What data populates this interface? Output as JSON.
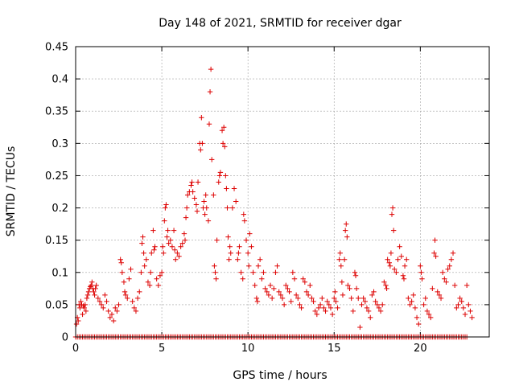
{
  "chart_data": {
    "type": "scatter",
    "title": "Day 148 of 2021, SRMTID for receiver dgar",
    "xlabel": "GPS time / hours",
    "ylabel": "SRMTID / TECUs",
    "xlim": [
      0,
      24
    ],
    "ylim": [
      0,
      0.45
    ],
    "x_ticks": [
      0,
      5,
      10,
      15,
      20
    ],
    "x_tick_labels": [
      "0",
      "5",
      "10",
      "15",
      "20"
    ],
    "y_ticks": [
      0,
      0.05,
      0.1,
      0.15,
      0.2,
      0.25,
      0.3,
      0.35,
      0.4,
      0.45
    ],
    "y_tick_labels": [
      "0",
      "0.05",
      "0.1",
      "0.15",
      "0.2",
      "0.25",
      "0.3",
      "0.35",
      "0.4",
      "0.45"
    ],
    "grid": true,
    "marker": "+",
    "color": "#dd0000",
    "series": [
      {
        "name": "SRMTID",
        "points": [
          [
            0.05,
            0.02
          ],
          [
            0.1,
            0.03
          ],
          [
            0.15,
            0.025
          ],
          [
            0.2,
            0.05
          ],
          [
            0.25,
            0.045
          ],
          [
            0.3,
            0.055
          ],
          [
            0.35,
            0.05
          ],
          [
            0.4,
            0.035
          ],
          [
            0.45,
            0.048
          ],
          [
            0.5,
            0.045
          ],
          [
            0.55,
            0.05
          ],
          [
            0.6,
            0.04
          ],
          [
            0.65,
            0.06
          ],
          [
            0.7,
            0.065
          ],
          [
            0.75,
            0.07
          ],
          [
            0.8,
            0.075
          ],
          [
            0.85,
            0.078
          ],
          [
            0.9,
            0.08
          ],
          [
            0.95,
            0.085
          ],
          [
            1.0,
            0.075
          ],
          [
            1.05,
            0.07
          ],
          [
            1.1,
            0.065
          ],
          [
            1.15,
            0.075
          ],
          [
            1.2,
            0.08
          ],
          [
            1.3,
            0.06
          ],
          [
            1.4,
            0.055
          ],
          [
            1.5,
            0.05
          ],
          [
            1.6,
            0.045
          ],
          [
            1.7,
            0.065
          ],
          [
            1.8,
            0.055
          ],
          [
            1.9,
            0.04
          ],
          [
            2.0,
            0.03
          ],
          [
            2.1,
            0.035
          ],
          [
            2.2,
            0.025
          ],
          [
            2.3,
            0.045
          ],
          [
            2.4,
            0.04
          ],
          [
            2.5,
            0.05
          ],
          [
            2.6,
            0.12
          ],
          [
            2.65,
            0.115
          ],
          [
            2.7,
            0.1
          ],
          [
            2.8,
            0.085
          ],
          [
            2.85,
            0.07
          ],
          [
            2.9,
            0.065
          ],
          [
            3.0,
            0.06
          ],
          [
            3.1,
            0.09
          ],
          [
            3.2,
            0.105
          ],
          [
            3.3,
            0.055
          ],
          [
            3.4,
            0.045
          ],
          [
            3.5,
            0.04
          ],
          [
            3.6,
            0.06
          ],
          [
            3.7,
            0.07
          ],
          [
            3.8,
            0.1
          ],
          [
            3.85,
            0.145
          ],
          [
            3.9,
            0.155
          ],
          [
            3.95,
            0.13
          ],
          [
            4.0,
            0.11
          ],
          [
            4.1,
            0.12
          ],
          [
            4.2,
            0.085
          ],
          [
            4.3,
            0.08
          ],
          [
            4.35,
            0.1
          ],
          [
            4.4,
            0.13
          ],
          [
            4.5,
            0.165
          ],
          [
            4.55,
            0.135
          ],
          [
            4.6,
            0.14
          ],
          [
            4.7,
            0.09
          ],
          [
            4.8,
            0.08
          ],
          [
            4.9,
            0.095
          ],
          [
            5.0,
            0.1
          ],
          [
            5.05,
            0.14
          ],
          [
            5.1,
            0.13
          ],
          [
            5.15,
            0.18
          ],
          [
            5.2,
            0.2
          ],
          [
            5.25,
            0.205
          ],
          [
            5.3,
            0.155
          ],
          [
            5.35,
            0.165
          ],
          [
            5.4,
            0.145
          ],
          [
            5.5,
            0.15
          ],
          [
            5.6,
            0.14
          ],
          [
            5.7,
            0.165
          ],
          [
            5.75,
            0.135
          ],
          [
            5.8,
            0.12
          ],
          [
            5.9,
            0.13
          ],
          [
            6.0,
            0.125
          ],
          [
            6.1,
            0.14
          ],
          [
            6.2,
            0.145
          ],
          [
            6.3,
            0.16
          ],
          [
            6.35,
            0.15
          ],
          [
            6.4,
            0.185
          ],
          [
            6.45,
            0.2
          ],
          [
            6.5,
            0.22
          ],
          [
            6.6,
            0.225
          ],
          [
            6.7,
            0.235
          ],
          [
            6.75,
            0.24
          ],
          [
            6.8,
            0.225
          ],
          [
            6.9,
            0.215
          ],
          [
            7.0,
            0.205
          ],
          [
            7.05,
            0.195
          ],
          [
            7.1,
            0.24
          ],
          [
            7.2,
            0.3
          ],
          [
            7.25,
            0.29
          ],
          [
            7.3,
            0.34
          ],
          [
            7.35,
            0.3
          ],
          [
            7.4,
            0.2
          ],
          [
            7.45,
            0.21
          ],
          [
            7.5,
            0.19
          ],
          [
            7.55,
            0.22
          ],
          [
            7.6,
            0.2
          ],
          [
            7.7,
            0.18
          ],
          [
            7.75,
            0.33
          ],
          [
            7.8,
            0.38
          ],
          [
            7.85,
            0.415
          ],
          [
            7.9,
            0.275
          ],
          [
            8.0,
            0.22
          ],
          [
            8.05,
            0.11
          ],
          [
            8.1,
            0.1
          ],
          [
            8.15,
            0.09
          ],
          [
            8.2,
            0.15
          ],
          [
            8.3,
            0.24
          ],
          [
            8.35,
            0.25
          ],
          [
            8.4,
            0.255
          ],
          [
            8.5,
            0.32
          ],
          [
            8.55,
            0.3
          ],
          [
            8.6,
            0.325
          ],
          [
            8.65,
            0.295
          ],
          [
            8.7,
            0.25
          ],
          [
            8.75,
            0.23
          ],
          [
            8.8,
            0.2
          ],
          [
            8.85,
            0.155
          ],
          [
            8.9,
            0.12
          ],
          [
            8.95,
            0.14
          ],
          [
            9.0,
            0.13
          ],
          [
            9.1,
            0.2
          ],
          [
            9.2,
            0.23
          ],
          [
            9.3,
            0.21
          ],
          [
            9.4,
            0.12
          ],
          [
            9.45,
            0.13
          ],
          [
            9.5,
            0.14
          ],
          [
            9.6,
            0.1
          ],
          [
            9.7,
            0.09
          ],
          [
            9.75,
            0.19
          ],
          [
            9.8,
            0.18
          ],
          [
            9.9,
            0.15
          ],
          [
            10.0,
            0.13
          ],
          [
            10.05,
            0.11
          ],
          [
            10.1,
            0.16
          ],
          [
            10.2,
            0.14
          ],
          [
            10.3,
            0.1
          ],
          [
            10.4,
            0.08
          ],
          [
            10.5,
            0.06
          ],
          [
            10.55,
            0.055
          ],
          [
            10.6,
            0.11
          ],
          [
            10.7,
            0.12
          ],
          [
            10.8,
            0.09
          ],
          [
            10.9,
            0.1
          ],
          [
            11.0,
            0.075
          ],
          [
            11.1,
            0.07
          ],
          [
            11.2,
            0.065
          ],
          [
            11.3,
            0.08
          ],
          [
            11.4,
            0.06
          ],
          [
            11.5,
            0.075
          ],
          [
            11.6,
            0.1
          ],
          [
            11.7,
            0.11
          ],
          [
            11.8,
            0.07
          ],
          [
            11.9,
            0.065
          ],
          [
            12.0,
            0.06
          ],
          [
            12.1,
            0.05
          ],
          [
            12.2,
            0.08
          ],
          [
            12.3,
            0.075
          ],
          [
            12.4,
            0.07
          ],
          [
            12.5,
            0.055
          ],
          [
            12.6,
            0.1
          ],
          [
            12.7,
            0.09
          ],
          [
            12.8,
            0.065
          ],
          [
            12.9,
            0.06
          ],
          [
            13.0,
            0.05
          ],
          [
            13.1,
            0.045
          ],
          [
            13.2,
            0.09
          ],
          [
            13.3,
            0.085
          ],
          [
            13.4,
            0.07
          ],
          [
            13.5,
            0.065
          ],
          [
            13.6,
            0.08
          ],
          [
            13.7,
            0.06
          ],
          [
            13.8,
            0.055
          ],
          [
            13.9,
            0.04
          ],
          [
            14.0,
            0.035
          ],
          [
            14.1,
            0.045
          ],
          [
            14.2,
            0.05
          ],
          [
            14.3,
            0.06
          ],
          [
            14.4,
            0.045
          ],
          [
            14.5,
            0.04
          ],
          [
            14.6,
            0.055
          ],
          [
            14.7,
            0.05
          ],
          [
            14.8,
            0.045
          ],
          [
            14.9,
            0.035
          ],
          [
            15.0,
            0.06
          ],
          [
            15.05,
            0.07
          ],
          [
            15.1,
            0.055
          ],
          [
            15.2,
            0.045
          ],
          [
            15.3,
            0.12
          ],
          [
            15.35,
            0.13
          ],
          [
            15.4,
            0.11
          ],
          [
            15.45,
            0.085
          ],
          [
            15.5,
            0.065
          ],
          [
            15.6,
            0.12
          ],
          [
            15.65,
            0.165
          ],
          [
            15.7,
            0.175
          ],
          [
            15.75,
            0.155
          ],
          [
            15.8,
            0.08
          ],
          [
            15.9,
            0.075
          ],
          [
            16.0,
            0.06
          ],
          [
            16.1,
            0.04
          ],
          [
            16.2,
            0.1
          ],
          [
            16.25,
            0.095
          ],
          [
            16.3,
            0.075
          ],
          [
            16.4,
            0.06
          ],
          [
            16.5,
            0.015
          ],
          [
            16.6,
            0.05
          ],
          [
            16.7,
            0.06
          ],
          [
            16.8,
            0.055
          ],
          [
            16.9,
            0.045
          ],
          [
            17.0,
            0.04
          ],
          [
            17.1,
            0.03
          ],
          [
            17.2,
            0.065
          ],
          [
            17.3,
            0.07
          ],
          [
            17.4,
            0.055
          ],
          [
            17.5,
            0.05
          ],
          [
            17.6,
            0.045
          ],
          [
            17.7,
            0.04
          ],
          [
            17.8,
            0.05
          ],
          [
            17.9,
            0.085
          ],
          [
            18.0,
            0.08
          ],
          [
            18.05,
            0.075
          ],
          [
            18.1,
            0.12
          ],
          [
            18.2,
            0.115
          ],
          [
            18.25,
            0.11
          ],
          [
            18.3,
            0.13
          ],
          [
            18.35,
            0.19
          ],
          [
            18.4,
            0.2
          ],
          [
            18.45,
            0.165
          ],
          [
            18.5,
            0.105
          ],
          [
            18.6,
            0.1
          ],
          [
            18.7,
            0.12
          ],
          [
            18.8,
            0.14
          ],
          [
            18.9,
            0.125
          ],
          [
            19.0,
            0.095
          ],
          [
            19.05,
            0.09
          ],
          [
            19.1,
            0.11
          ],
          [
            19.2,
            0.12
          ],
          [
            19.3,
            0.06
          ],
          [
            19.4,
            0.05
          ],
          [
            19.5,
            0.055
          ],
          [
            19.6,
            0.065
          ],
          [
            19.7,
            0.045
          ],
          [
            19.8,
            0.03
          ],
          [
            19.9,
            0.02
          ],
          [
            20.0,
            0.11
          ],
          [
            20.05,
            0.1
          ],
          [
            20.1,
            0.09
          ],
          [
            20.2,
            0.05
          ],
          [
            20.3,
            0.06
          ],
          [
            20.4,
            0.04
          ],
          [
            20.5,
            0.035
          ],
          [
            20.6,
            0.03
          ],
          [
            20.7,
            0.075
          ],
          [
            20.8,
            0.13
          ],
          [
            20.85,
            0.15
          ],
          [
            20.9,
            0.125
          ],
          [
            21.0,
            0.07
          ],
          [
            21.1,
            0.065
          ],
          [
            21.2,
            0.06
          ],
          [
            21.3,
            0.1
          ],
          [
            21.4,
            0.09
          ],
          [
            21.5,
            0.085
          ],
          [
            21.6,
            0.105
          ],
          [
            21.7,
            0.11
          ],
          [
            21.8,
            0.12
          ],
          [
            21.9,
            0.13
          ],
          [
            22.0,
            0.08
          ],
          [
            22.1,
            0.045
          ],
          [
            22.2,
            0.05
          ],
          [
            22.3,
            0.06
          ],
          [
            22.4,
            0.055
          ],
          [
            22.5,
            0.045
          ],
          [
            22.6,
            0.035
          ],
          [
            22.7,
            0.08
          ],
          [
            22.8,
            0.05
          ],
          [
            22.9,
            0.04
          ],
          [
            23.0,
            0.03
          ]
        ]
      }
    ]
  }
}
